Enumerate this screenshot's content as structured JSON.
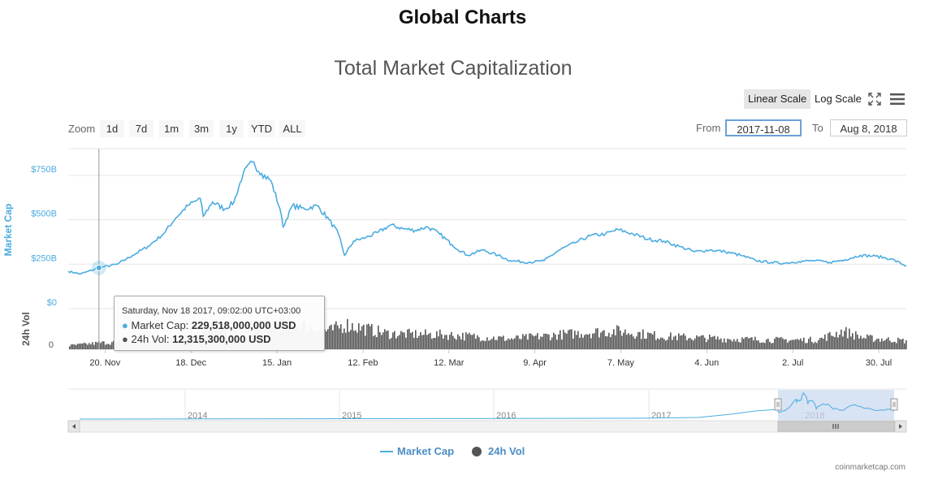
{
  "page": {
    "header": "Global Charts",
    "credits": "coinmarketcap.com"
  },
  "toolbar": {
    "linear_scale": "Linear Scale",
    "log_scale": "Log Scale",
    "fullscreen_icon": "fullscreen-icon",
    "menu_icon": "hamburger-menu-icon"
  },
  "range_selector": {
    "zoom_label": "Zoom",
    "buttons": [
      "1d",
      "7d",
      "1m",
      "3m",
      "1y",
      "YTD",
      "ALL"
    ],
    "from_label": "From",
    "from_value": "2017-11-08",
    "to_label": "To",
    "to_value": "Aug 8, 2018"
  },
  "tooltip": {
    "header": "Saturday, Nov 18 2017, 09:02:00 UTC+03:00",
    "market_cap_label": "Market Cap: ",
    "market_cap_value": "229,518,000,000 USD",
    "vol_label": "24h Vol: ",
    "vol_value": "12,315,300,000 USD"
  },
  "legend": {
    "market_cap": "Market Cap",
    "vol": "24h Vol"
  },
  "colors": {
    "market_cap": "#4aace0",
    "volume": "#555555",
    "navigator_mask": "#c8d7f0"
  },
  "chart_data": {
    "type": "line",
    "title": "Total Market Capitalization",
    "x_tick_labels": [
      "20. Nov",
      "18. Dec",
      "15. Jan",
      "12. Feb",
      "12. Mar",
      "9. Apr",
      "7. May",
      "4. Jun",
      "2. Jul",
      "30. Jul"
    ],
    "x_range": [
      "2017-11-08",
      "2018-08-08"
    ],
    "y_axis_market_cap": {
      "label": "Market Cap",
      "tick_labels": [
        "$0",
        "$250B",
        "$500B",
        "$750B"
      ],
      "range_billion_usd": [
        0,
        900
      ]
    },
    "y_axis_volume": {
      "label": "24h Vol",
      "tick_labels": [
        "0"
      ]
    },
    "series": [
      {
        "name": "Market Cap",
        "unit": "billion USD",
        "points": [
          [
            "2017-11-08",
            210
          ],
          [
            "2017-11-12",
            195
          ],
          [
            "2017-11-18",
            229.5
          ],
          [
            "2017-11-24",
            250
          ],
          [
            "2017-11-29",
            300
          ],
          [
            "2017-12-04",
            350
          ],
          [
            "2017-12-09",
            420
          ],
          [
            "2017-12-13",
            510
          ],
          [
            "2017-12-17",
            580
          ],
          [
            "2017-12-21",
            620
          ],
          [
            "2017-12-22",
            520
          ],
          [
            "2017-12-25",
            600
          ],
          [
            "2017-12-29",
            560
          ],
          [
            "2018-01-01",
            600
          ],
          [
            "2018-01-04",
            760
          ],
          [
            "2018-01-07",
            825
          ],
          [
            "2018-01-10",
            760
          ],
          [
            "2018-01-13",
            720
          ],
          [
            "2018-01-16",
            560
          ],
          [
            "2018-01-17",
            460
          ],
          [
            "2018-01-20",
            580
          ],
          [
            "2018-01-24",
            560
          ],
          [
            "2018-01-28",
            580
          ],
          [
            "2018-02-01",
            500
          ],
          [
            "2018-02-04",
            420
          ],
          [
            "2018-02-06",
            300
          ],
          [
            "2018-02-09",
            380
          ],
          [
            "2018-02-13",
            400
          ],
          [
            "2018-02-17",
            430
          ],
          [
            "2018-02-21",
            470
          ],
          [
            "2018-02-25",
            450
          ],
          [
            "2018-03-01",
            440
          ],
          [
            "2018-03-05",
            460
          ],
          [
            "2018-03-09",
            420
          ],
          [
            "2018-03-13",
            360
          ],
          [
            "2018-03-18",
            300
          ],
          [
            "2018-03-23",
            330
          ],
          [
            "2018-03-28",
            300
          ],
          [
            "2018-04-01",
            270
          ],
          [
            "2018-04-07",
            260
          ],
          [
            "2018-04-12",
            270
          ],
          [
            "2018-04-17",
            330
          ],
          [
            "2018-04-22",
            370
          ],
          [
            "2018-04-27",
            410
          ],
          [
            "2018-05-02",
            420
          ],
          [
            "2018-05-06",
            445
          ],
          [
            "2018-05-11",
            420
          ],
          [
            "2018-05-16",
            390
          ],
          [
            "2018-05-21",
            380
          ],
          [
            "2018-05-26",
            350
          ],
          [
            "2018-05-31",
            320
          ],
          [
            "2018-06-05",
            330
          ],
          [
            "2018-06-10",
            320
          ],
          [
            "2018-06-15",
            300
          ],
          [
            "2018-06-20",
            270
          ],
          [
            "2018-06-25",
            260
          ],
          [
            "2018-06-29",
            255
          ],
          [
            "2018-07-04",
            265
          ],
          [
            "2018-07-09",
            270
          ],
          [
            "2018-07-14",
            260
          ],
          [
            "2018-07-19",
            275
          ],
          [
            "2018-07-24",
            300
          ],
          [
            "2018-07-29",
            295
          ],
          [
            "2018-08-03",
            280
          ],
          [
            "2018-08-08",
            240
          ]
        ]
      },
      {
        "name": "24h Vol",
        "unit": "billion USD",
        "points": [
          [
            "2017-11-08",
            7
          ],
          [
            "2017-11-18",
            12.3
          ],
          [
            "2017-12-01",
            15
          ],
          [
            "2017-12-15",
            25
          ],
          [
            "2017-12-22",
            40
          ],
          [
            "2018-01-01",
            30
          ],
          [
            "2018-01-08",
            45
          ],
          [
            "2018-01-17",
            55
          ],
          [
            "2018-02-01",
            35
          ],
          [
            "2018-02-06",
            48
          ],
          [
            "2018-02-20",
            30
          ],
          [
            "2018-03-10",
            28
          ],
          [
            "2018-04-01",
            20
          ],
          [
            "2018-04-25",
            32
          ],
          [
            "2018-05-06",
            35
          ],
          [
            "2018-05-20",
            25
          ],
          [
            "2018-06-10",
            20
          ],
          [
            "2018-06-25",
            18
          ],
          [
            "2018-07-10",
            18
          ],
          [
            "2018-07-18",
            35
          ],
          [
            "2018-07-25",
            22
          ],
          [
            "2018-08-08",
            16
          ]
        ]
      }
    ],
    "navigator": {
      "tick_labels": [
        "2014",
        "2015",
        "2016",
        "2017",
        "2018"
      ],
      "selected_range": [
        "2017-11-08",
        "2018-08-08"
      ]
    }
  }
}
